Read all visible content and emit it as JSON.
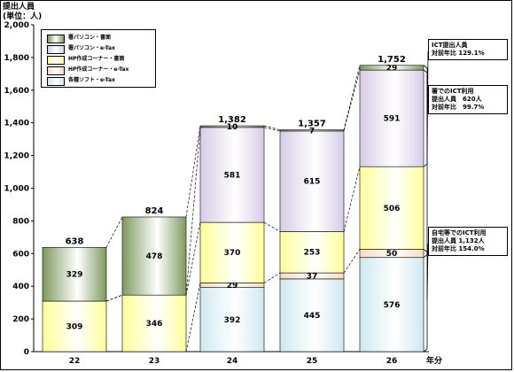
{
  "chart_data": {
    "type": "bar",
    "stacked": true,
    "ytitle_line1": "提出人員",
    "ytitle_line2": "(単位：人)",
    "xunit": "年分",
    "ylim": [
      0,
      2000
    ],
    "yticks": [
      "0",
      "200",
      "400",
      "600",
      "800",
      "1,000",
      "1,200",
      "1,400",
      "1,600",
      "1,800",
      "2,000"
    ],
    "categories": [
      "22",
      "23",
      "24",
      "25",
      "26"
    ],
    "totals": [
      "638",
      "824",
      "1,382",
      "1,357",
      "1,752"
    ],
    "series": [
      {
        "name": "各種ソフト・e-Tax",
        "values": [
          0,
          0,
          392,
          445,
          576
        ],
        "labels": [
          "",
          "",
          "392",
          "445",
          "576"
        ],
        "color": "#cfe8f0"
      },
      {
        "name": "HP作成コーナー・e-Tax",
        "values": [
          0,
          0,
          29,
          37,
          50
        ],
        "labels": [
          "",
          "",
          "29",
          "37",
          "50"
        ],
        "color": "#f7d9c4"
      },
      {
        "name": "HP作成コーナー・書面",
        "values": [
          309,
          346,
          370,
          253,
          506
        ],
        "labels": [
          "309",
          "346",
          "370",
          "253",
          "506"
        ],
        "color": "#ffff99"
      },
      {
        "name": "署パソコン・e-Tax",
        "values": [
          0,
          0,
          581,
          615,
          591
        ],
        "labels": [
          "",
          "",
          "581",
          "615",
          "591"
        ],
        "color": "#d6cce6"
      },
      {
        "name": "署パソコン・書面",
        "values": [
          329,
          478,
          10,
          7,
          29
        ],
        "labels": [
          "329",
          "478",
          "10",
          "7",
          "29"
        ],
        "color": "#7f9a5e"
      }
    ],
    "legend_order": [
      "署パソコン・書面",
      "署パソコン・e-Tax",
      "HP作成コーナー・書面",
      "HP作成コーナー・e-Tax",
      "各種ソフト・e-Tax"
    ],
    "legend_placement": "top-left",
    "grid": false
  },
  "callouts": [
    {
      "lines": [
        "ICT提出人員",
        "対前年比 129.1%"
      ]
    },
    {
      "lines": [
        "署でのICT利用",
        "提出人員　620人",
        "対前年比　99.7%"
      ]
    },
    {
      "lines": [
        "自宅等でのICT利用",
        "提出人員 1,132人",
        "対前年比 154.0%"
      ]
    }
  ]
}
